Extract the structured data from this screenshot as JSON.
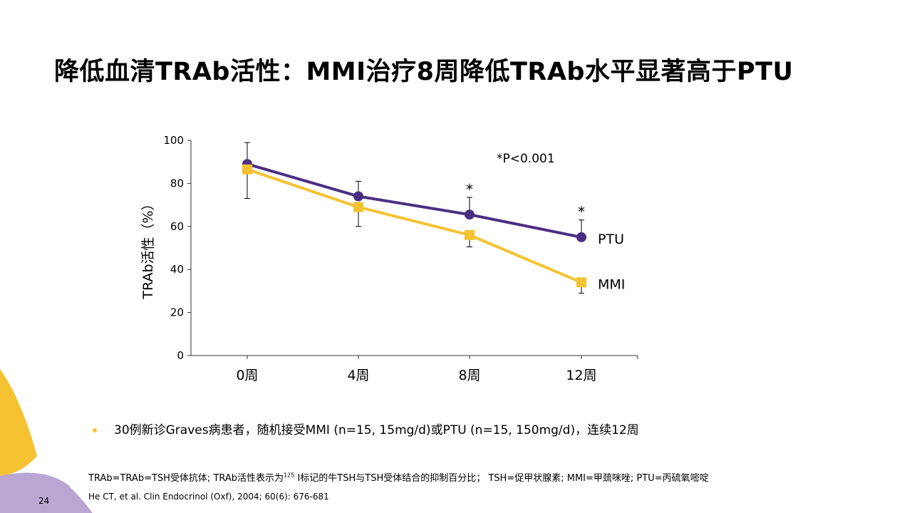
{
  "title": "降低血清TRAb活性：MMI治疗8周降低TRAb水平显著高于PTU",
  "chart_data": {
    "type": "line",
    "categories": [
      "0周",
      "4周",
      "8周",
      "12周"
    ],
    "ylabel": "TRAb活性（%）",
    "xlabel": "",
    "ylim": [
      0,
      100
    ],
    "yticks": [
      0,
      20,
      40,
      60,
      80,
      100
    ],
    "grid": false,
    "annotation": "*P<0.001",
    "significance_markers": [
      "",
      "",
      "*",
      "*"
    ],
    "series": [
      {
        "name": "PTU",
        "color": "#4b2e83",
        "marker": "circle",
        "values": [
          89,
          74,
          65.5,
          55
        ],
        "error_upper": [
          99,
          81,
          73.5,
          63
        ]
      },
      {
        "name": "MMI",
        "color": "#f5c232",
        "marker": "square",
        "values": [
          86.5,
          69,
          56,
          34
        ],
        "error_lower": [
          73,
          60,
          50.5,
          29
        ]
      }
    ]
  },
  "bullet": "30例新诊Graves病患者，随机接受MMI (n=15, 15mg/d)或PTU (n=15, 150mg/d)，连续12周",
  "note_pre": "TRAb=TRAb=TSH受体抗体; TRAb活性表示为",
  "note_sup": "125",
  "note_post": " I标记的牛TSH与TSH受体结合的抑制百分比；  TSH=促甲状腺素; MMI=甲巯咪唑; PTU=丙硫氧嘧啶",
  "reference": "He CT, et al.  Clin Endocrinol (Oxf), 2004; 60(6): 676-681",
  "page_number": "24",
  "colors": {
    "accent_yellow": "#f5c232",
    "accent_lavender": "#b9a6d3",
    "ptu": "#4b2e83",
    "mmi": "#f5c232"
  }
}
